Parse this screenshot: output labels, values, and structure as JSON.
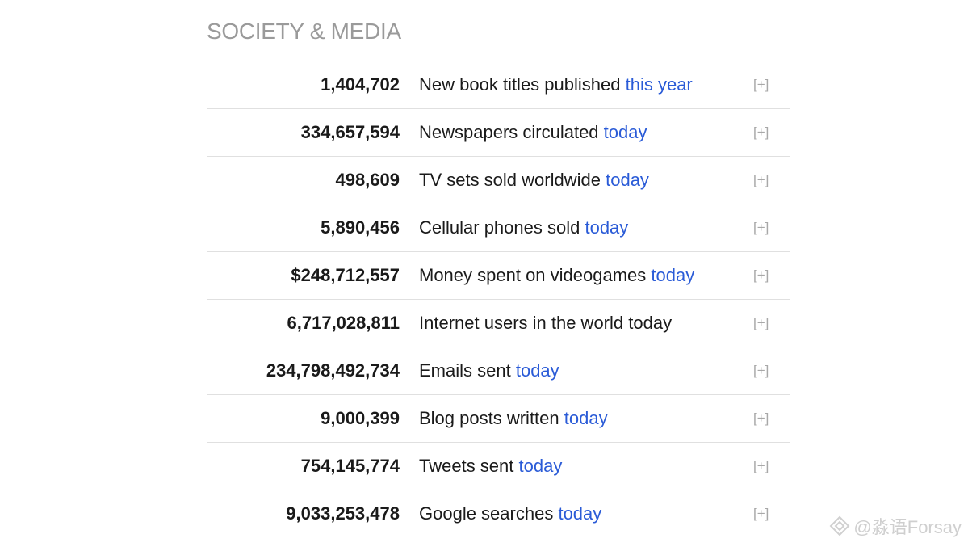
{
  "section": {
    "title": "SOCIETY & MEDIA"
  },
  "stats": [
    {
      "value": "1,404,702",
      "label": "New book titles published",
      "period": "this year",
      "period_link": true,
      "toggle": "[+]"
    },
    {
      "value": "334,657,594",
      "label": "Newspapers circulated",
      "period": "today",
      "period_link": true,
      "toggle": "[+]"
    },
    {
      "value": "498,609",
      "label": "TV sets sold worldwide",
      "period": "today",
      "period_link": true,
      "toggle": "[+]"
    },
    {
      "value": "5,890,456",
      "label": "Cellular phones sold",
      "period": "today",
      "period_link": true,
      "toggle": "[+]"
    },
    {
      "value": "$248,712,557",
      "label": "Money spent on videogames",
      "period": "today",
      "period_link": true,
      "toggle": "[+]"
    },
    {
      "value": "6,717,028,811",
      "label": "Internet users in the world",
      "period": "today",
      "period_link": false,
      "toggle": "[+]"
    },
    {
      "value": "234,798,492,734",
      "label": "Emails sent",
      "period": "today",
      "period_link": true,
      "toggle": "[+]"
    },
    {
      "value": "9,000,399",
      "label": "Blog posts written",
      "period": "today",
      "period_link": true,
      "toggle": "[+]"
    },
    {
      "value": "754,145,774",
      "label": "Tweets sent",
      "period": "today",
      "period_link": true,
      "toggle": "[+]"
    },
    {
      "value": "9,033,253,478",
      "label": "Google searches",
      "period": "today",
      "period_link": true,
      "toggle": "[+]"
    }
  ],
  "watermark": {
    "text": "@淼语Forsay",
    "icon": "diamond-logo-icon"
  },
  "colors": {
    "title": "#9a9a9a",
    "value": "#1a1a1a",
    "link": "#2a5bd7",
    "toggle": "#a8a8a8",
    "divider": "#e0e0e0"
  }
}
